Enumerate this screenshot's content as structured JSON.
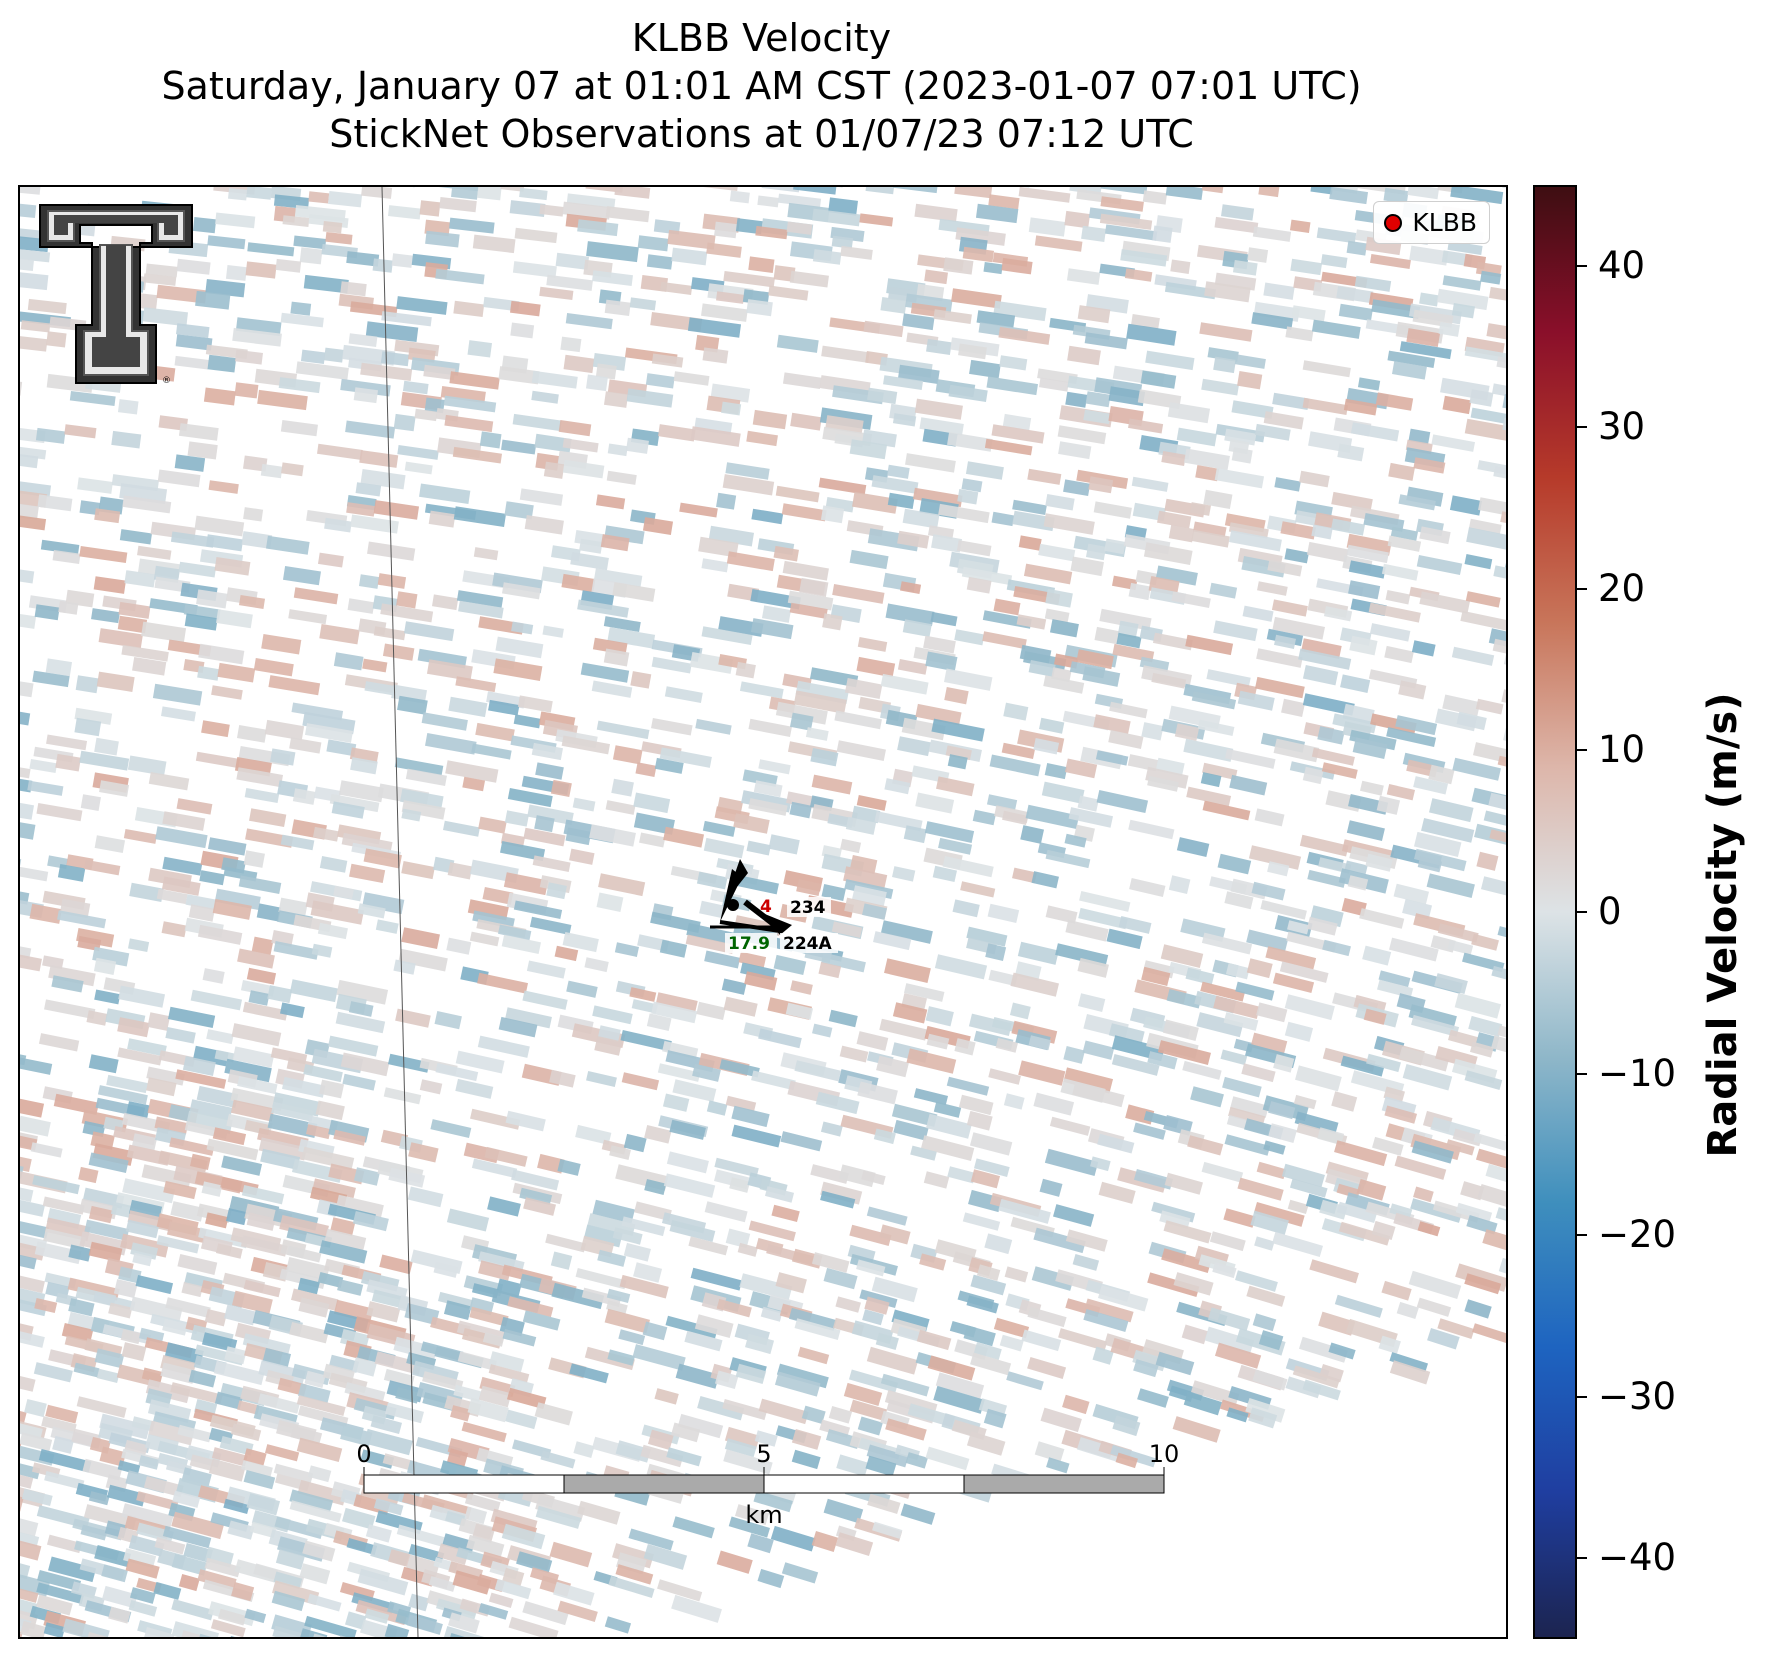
{
  "title": {
    "line1": "KLBB Velocity",
    "line2": "Saturday, January 07 at 01:01 AM CST (2023-01-07 07:01 UTC)",
    "line3": "StickNet Observations at 01/07/23 07:12 UTC"
  },
  "legend": {
    "label": "KLBB",
    "marker_color": "#e00000"
  },
  "colorbar": {
    "label": "Radial Velocity (m/s)",
    "vmin": -45,
    "vmax": 45,
    "ticks": [
      40,
      30,
      20,
      10,
      0,
      -10,
      -20,
      -30,
      -40
    ],
    "tick_labels": [
      "40",
      "30",
      "20",
      "10",
      "0",
      "−10",
      "−20",
      "−30",
      "−40"
    ],
    "stops": [
      "#1c2450",
      "#1f3ea0",
      "#1e64c0",
      "#3f8fbd",
      "#8fb7c9",
      "#dde3e6",
      "#ddb6aa",
      "#c8755a",
      "#b63a2a",
      "#8a0f2a",
      "#3e0e12"
    ]
  },
  "scalebar": {
    "ticks": [
      "0",
      "5",
      "10"
    ],
    "unit": "km"
  },
  "stations": [
    {
      "id": "234",
      "value": "4",
      "value_color": "#cc0000"
    },
    {
      "id": "224A",
      "value": "17.9",
      "value_color": "#006400"
    }
  ],
  "logo": {
    "name": "Texas Tech Double T"
  },
  "chart_data": {
    "type": "heatmap",
    "title": "KLBB Velocity",
    "colorbar_label": "Radial Velocity (m/s)",
    "value_range": [
      -45,
      45
    ],
    "ticks": [
      -40,
      -30,
      -20,
      -10,
      0,
      10,
      20,
      30,
      40
    ],
    "field_range_observed": [
      -15,
      15
    ]
  }
}
